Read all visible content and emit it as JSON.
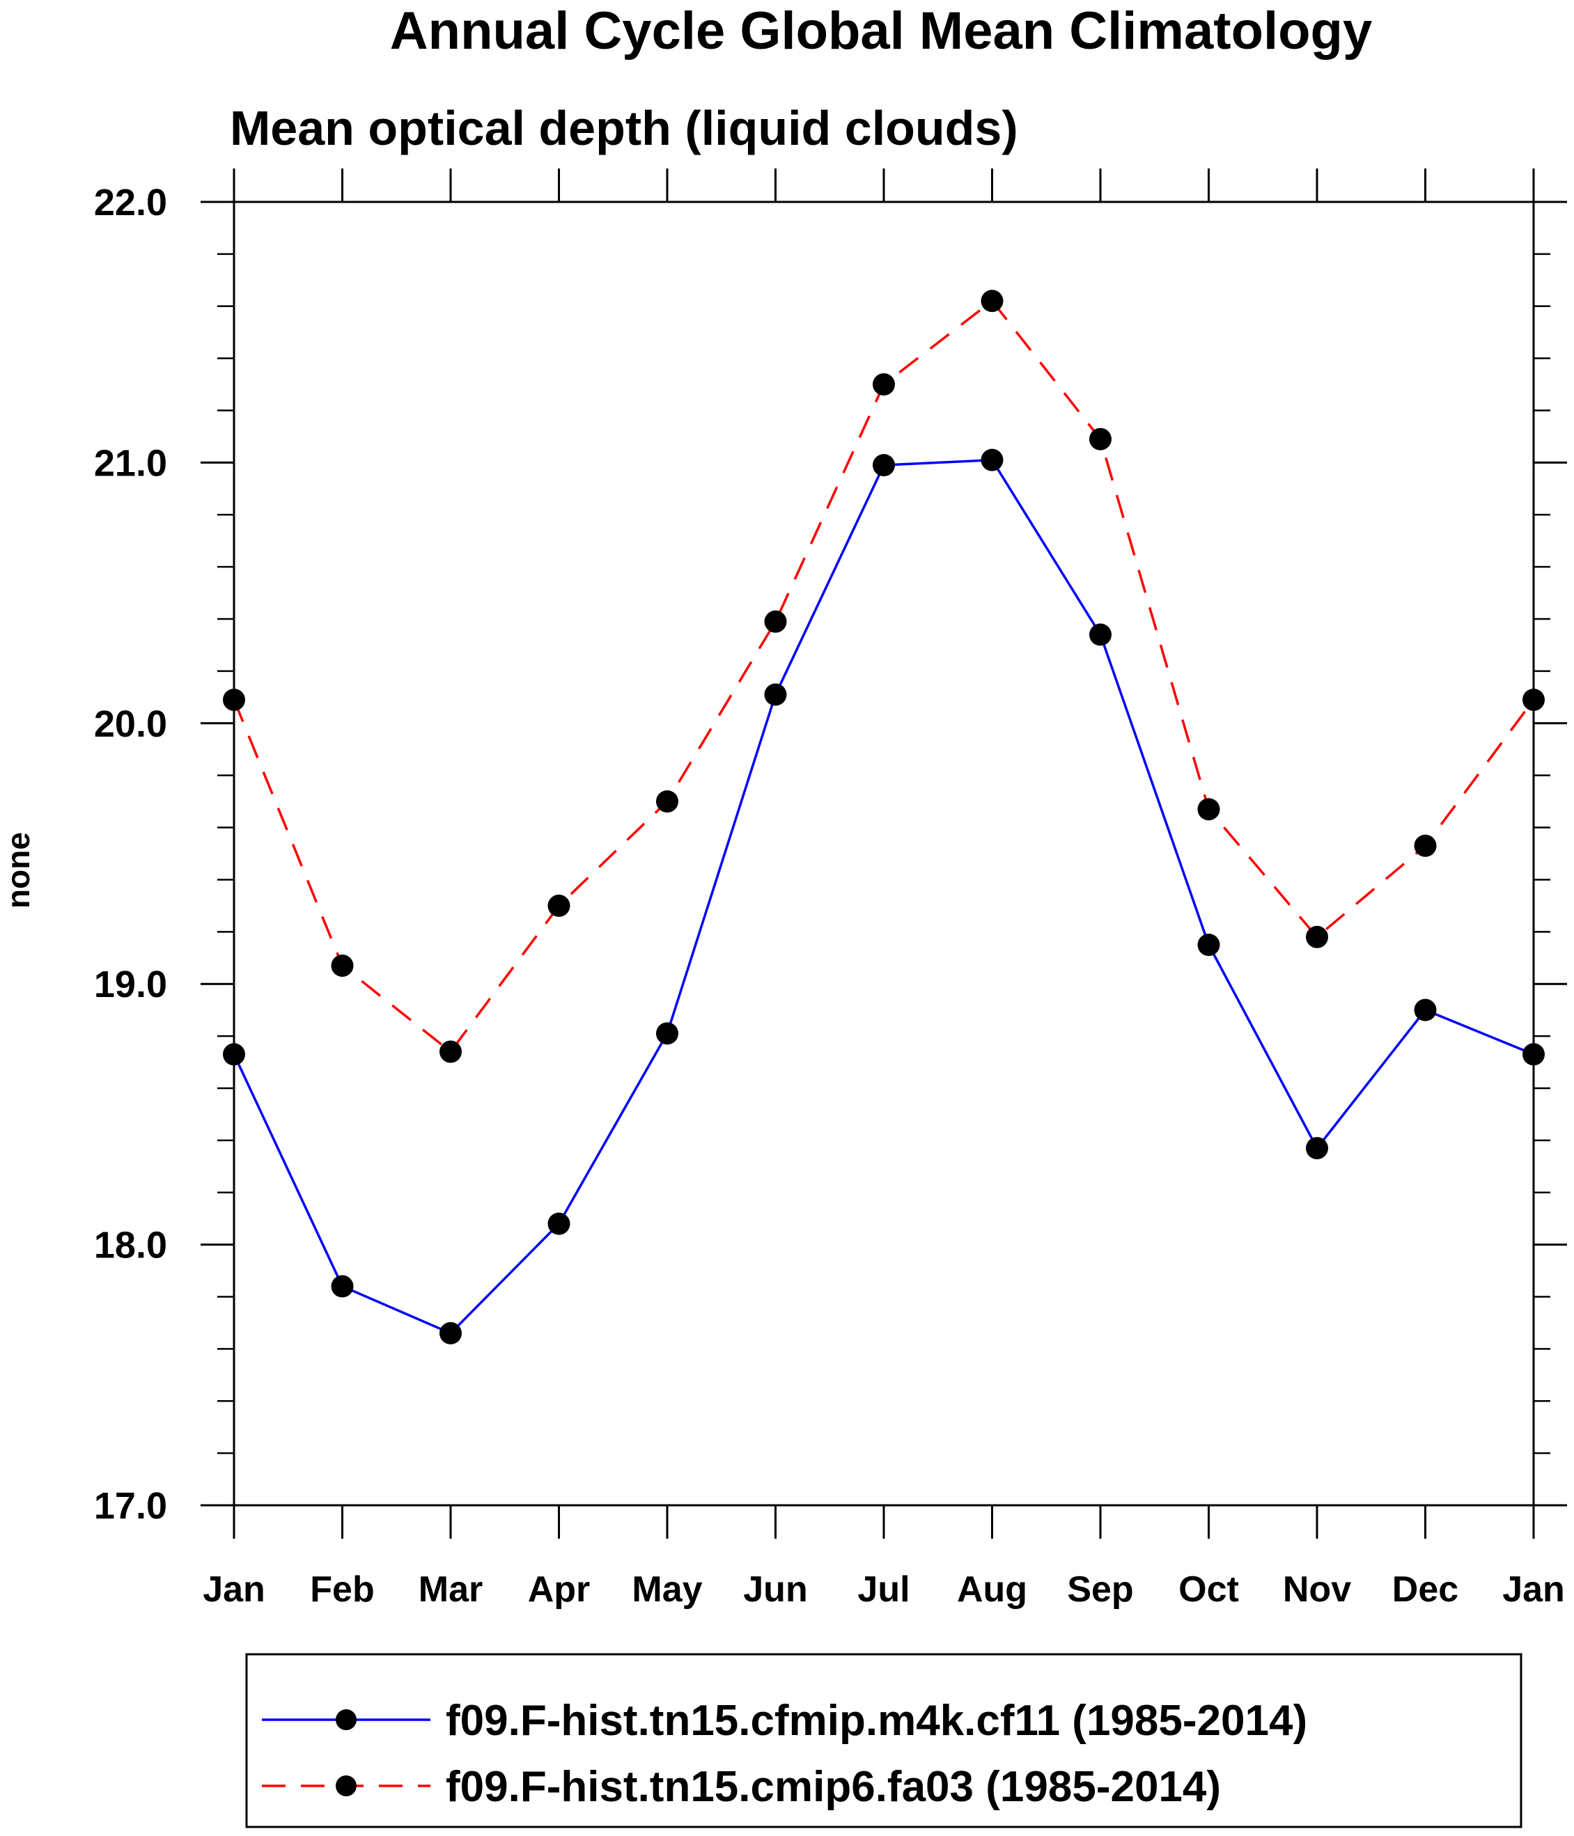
{
  "chart_data": {
    "type": "line",
    "title": "Annual Cycle Global Mean Climatology",
    "subtitle": "Mean optical depth (liquid clouds)",
    "xlabel": "",
    "ylabel": "none",
    "categories": [
      "Jan",
      "Feb",
      "Mar",
      "Apr",
      "May",
      "Jun",
      "Jul",
      "Aug",
      "Sep",
      "Oct",
      "Nov",
      "Dec",
      "Jan"
    ],
    "ylim": [
      17.0,
      22.0
    ],
    "yticks": [
      "17.0",
      "18.0",
      "19.0",
      "20.0",
      "21.0",
      "22.0"
    ],
    "ytick_values": [
      17.0,
      18.0,
      19.0,
      20.0,
      21.0,
      22.0
    ],
    "y_minor_step": 0.2,
    "grid": false,
    "legend_position": "bottom",
    "series": [
      {
        "name": "f09.F-hist.tn15.cfmip.m4k.cf11 (1985-2014)",
        "color": "#0000ff",
        "line_style": "solid",
        "marker": "filled-circle",
        "values": [
          18.73,
          17.84,
          17.66,
          18.08,
          18.81,
          20.11,
          20.99,
          21.01,
          20.34,
          19.15,
          18.37,
          18.9,
          18.73
        ]
      },
      {
        "name": "f09.F-hist.tn15.cmip6.fa03 (1985-2014)",
        "color": "#ff0000",
        "line_style": "dashed",
        "marker": "filled-circle",
        "values": [
          20.09,
          19.07,
          18.74,
          19.3,
          19.7,
          20.39,
          21.3,
          21.62,
          21.09,
          19.67,
          19.18,
          19.53,
          20.09
        ]
      }
    ]
  }
}
